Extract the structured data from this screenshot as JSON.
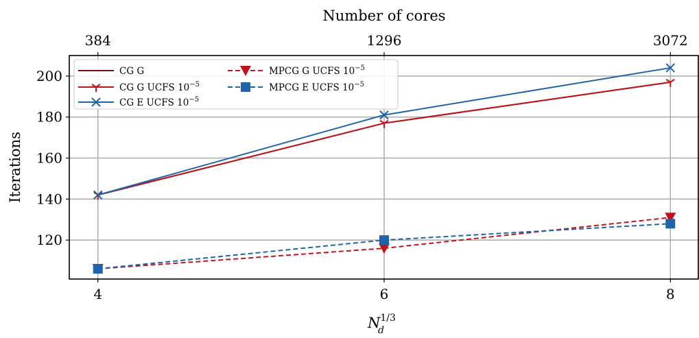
{
  "chart_data": {
    "type": "line",
    "xlabel": "N_d^{1/3}",
    "xlabel_main": "N",
    "xlabel_sub": "d",
    "xlabel_sup": "1/3",
    "ylabel": "Iterations",
    "top_axis_label": "Number of cores",
    "x": [
      4,
      6,
      8
    ],
    "x_tick_labels": [
      "4",
      "6",
      "8"
    ],
    "top_tick_labels": [
      "384",
      "1296",
      "3072"
    ],
    "xlim": [
      3.8,
      8.2
    ],
    "ylim": [
      101,
      210
    ],
    "y_ticks": [
      120,
      140,
      160,
      180,
      200
    ],
    "grid": true,
    "legend_position": "upper-left",
    "series": [
      {
        "name": "CG G",
        "name_sup": "",
        "values": [
          142,
          177,
          197
        ],
        "color": "#6b0f0f",
        "linestyle": "solid",
        "marker": "none"
      },
      {
        "name": "CG G UCFS 10",
        "name_sup": "−5",
        "values": [
          142,
          177,
          197
        ],
        "color": "#c0141c",
        "linestyle": "solid",
        "marker": "tri_down"
      },
      {
        "name": "CG E UCFS 10",
        "name_sup": "−5",
        "values": [
          142,
          181,
          204
        ],
        "color": "#1f63a8",
        "linestyle": "solid",
        "marker": "x"
      },
      {
        "name": "MPCG G UCFS 10",
        "name_sup": "−5",
        "values": [
          106,
          116,
          131
        ],
        "color": "#c0141c",
        "linestyle": "dashed",
        "marker": "triangle_down"
      },
      {
        "name": "MPCG E UCFS 10",
        "name_sup": "−5",
        "values": [
          106,
          120,
          128
        ],
        "color": "#1f63a8",
        "linestyle": "dashed",
        "marker": "square"
      }
    ]
  }
}
